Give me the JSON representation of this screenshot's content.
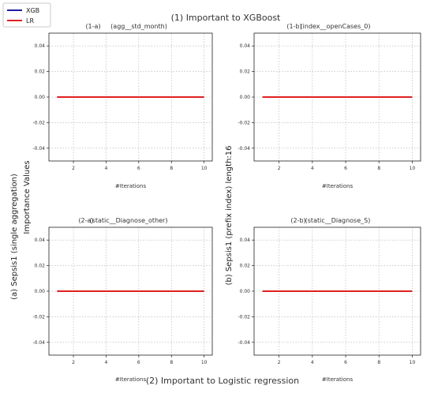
{
  "page": {
    "title_top": "(1)  Important to XGBoost",
    "title_bottom": "(2) Important to Logistic regression",
    "side_label_left": "(a)  Sepsis1 (single aggregation)",
    "side_label_left_sub": "Importance Values",
    "side_label_right": "(b)  Sepsis1 (prefix index) length:16"
  },
  "legend": {
    "placement": "top-left",
    "items": [
      {
        "label": "XGB",
        "color": "#1f1fa8"
      },
      {
        "label": "LR",
        "color": "#e02020"
      }
    ]
  },
  "chart_data": [
    {
      "type": "line",
      "id": "1a",
      "tag": "(1-a)",
      "title": "(agg__std_month)",
      "xlabel": "#Iterations",
      "ylabel": "",
      "x": [
        1,
        2,
        3,
        4,
        5,
        6,
        7,
        8,
        9,
        10
      ],
      "xlim": [
        0.5,
        10.5
      ],
      "ylim": [
        -0.05,
        0.05
      ],
      "xticks": [
        2,
        4,
        6,
        8,
        10
      ],
      "yticks": [
        0.04,
        0.02,
        0.0,
        -0.02,
        -0.04
      ],
      "ytick_labels": [
        "0.04",
        "0.02",
        "0.00",
        "-0.02",
        "-0.04"
      ],
      "grid": true,
      "series": [
        {
          "name": "XGB",
          "color": "#1f1fa8",
          "values": [
            0,
            0,
            0,
            0,
            0,
            0,
            0,
            0,
            0,
            0
          ]
        },
        {
          "name": "LR",
          "color": "#e02020",
          "values": [
            0,
            0,
            0,
            0,
            0,
            0,
            0,
            0,
            0,
            0
          ]
        }
      ]
    },
    {
      "type": "line",
      "id": "1b",
      "tag": "(1-b)",
      "title": "(index__openCases_0)",
      "xlabel": "#Iterations",
      "ylabel": "",
      "x": [
        1,
        2,
        3,
        4,
        5,
        6,
        7,
        8,
        9,
        10
      ],
      "xlim": [
        0.5,
        10.5
      ],
      "ylim": [
        -0.05,
        0.05
      ],
      "xticks": [
        2,
        4,
        6,
        8,
        10
      ],
      "yticks": [
        0.04,
        0.02,
        0.0,
        -0.02,
        -0.04
      ],
      "ytick_labels": [
        "0.04",
        "0.02",
        "0.00",
        "-0.02",
        "-0.04"
      ],
      "grid": true,
      "series": [
        {
          "name": "XGB",
          "color": "#1f1fa8",
          "values": [
            0,
            0,
            0,
            0,
            0,
            0,
            0,
            0,
            0,
            0
          ]
        },
        {
          "name": "LR",
          "color": "#e02020",
          "values": [
            0,
            0,
            0,
            0,
            0,
            0,
            0,
            0,
            0,
            0
          ]
        }
      ]
    },
    {
      "type": "line",
      "id": "2a",
      "tag": "(2-a)",
      "title": "(static__Diagnose_other)",
      "xlabel": "#Iterations",
      "ylabel": "",
      "x": [
        1,
        2,
        3,
        4,
        5,
        6,
        7,
        8,
        9,
        10
      ],
      "xlim": [
        0.5,
        10.5
      ],
      "ylim": [
        -0.05,
        0.05
      ],
      "xticks": [
        2,
        4,
        6,
        8,
        10
      ],
      "yticks": [
        0.04,
        0.02,
        0.0,
        -0.02,
        -0.04
      ],
      "ytick_labels": [
        "0.04",
        "0.02",
        "0.00",
        "-0.02",
        "-0.04"
      ],
      "grid": true,
      "series": [
        {
          "name": "XGB",
          "color": "#1f1fa8",
          "values": [
            0,
            0,
            0,
            0,
            0,
            0,
            0,
            0,
            0,
            0
          ]
        },
        {
          "name": "LR",
          "color": "#e02020",
          "values": [
            0,
            0,
            0,
            0,
            0,
            0,
            0,
            0,
            0,
            0
          ]
        }
      ]
    },
    {
      "type": "line",
      "id": "2b",
      "tag": "(2-b)",
      "title": "(static__Diagnose_S)",
      "xlabel": "#Iterations",
      "ylabel": "",
      "x": [
        1,
        2,
        3,
        4,
        5,
        6,
        7,
        8,
        9,
        10
      ],
      "xlim": [
        0.5,
        10.5
      ],
      "ylim": [
        -0.05,
        0.05
      ],
      "xticks": [
        2,
        4,
        6,
        8,
        10
      ],
      "yticks": [
        0.04,
        0.02,
        0.0,
        -0.02,
        -0.04
      ],
      "ytick_labels": [
        "0.04",
        "0.02",
        "0.00",
        "-0.02",
        "-0.04"
      ],
      "grid": true,
      "series": [
        {
          "name": "XGB",
          "color": "#1f1fa8",
          "values": [
            0,
            0,
            0,
            0,
            0,
            0,
            0,
            0,
            0,
            0
          ]
        },
        {
          "name": "LR",
          "color": "#e02020",
          "values": [
            0,
            0,
            0,
            0,
            0,
            0,
            0,
            0,
            0,
            0
          ]
        }
      ]
    }
  ]
}
